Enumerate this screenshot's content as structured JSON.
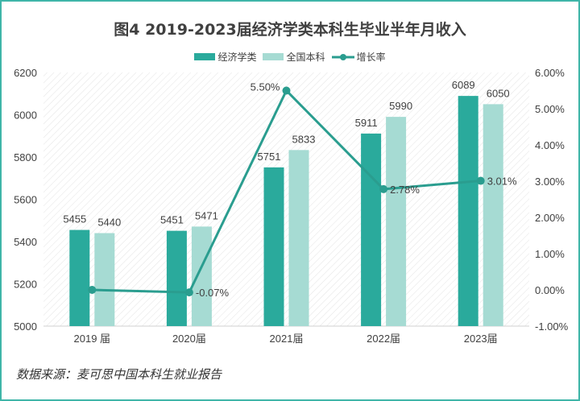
{
  "chart_data": {
    "type": "bar+line",
    "title": "图4 2019-2023届经济学类本科生毕业半年月收入",
    "categories": [
      "2019 届",
      "2020届",
      "2021届",
      "2022届",
      "2023届"
    ],
    "series": [
      {
        "name": "经济学类",
        "type": "bar",
        "axis": "left",
        "color": "#2aaa9c",
        "values": [
          5455,
          5451,
          5751,
          5911,
          6089
        ]
      },
      {
        "name": "全国本科",
        "type": "bar",
        "axis": "left",
        "color": "#a6dbd3",
        "values": [
          5440,
          5471,
          5833,
          5990,
          6050
        ]
      },
      {
        "name": "增长率",
        "type": "line",
        "axis": "right",
        "color": "#2a9d8f",
        "values": [
          0.0,
          -0.07,
          5.5,
          2.78,
          3.01
        ],
        "labels": [
          "",
          "-0.07%",
          "5.50%",
          "2.78%",
          "3.01%"
        ]
      }
    ],
    "ylim": [
      5000,
      6200
    ],
    "yticks": [
      "5000",
      "5200",
      "5400",
      "5600",
      "5800",
      "6000",
      "6200"
    ],
    "y2lim": [
      -1,
      6
    ],
    "y2ticks": [
      "-1.00%",
      "0.00%",
      "1.00%",
      "2.00%",
      "3.00%",
      "4.00%",
      "5.00%",
      "6.00%"
    ],
    "legend": "top"
  },
  "source": "数据来源：麦可思中国本科生就业报告"
}
